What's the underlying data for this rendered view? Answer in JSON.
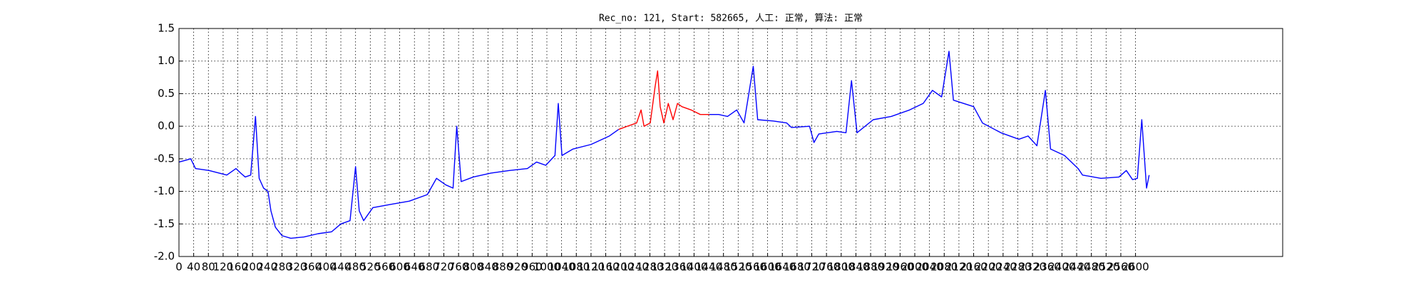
{
  "chart_data": {
    "type": "line",
    "title": "Rec_no: 121, Start: 582665, 人工: 正常, 算法: 正常",
    "xlim": [
      0,
      3000
    ],
    "ylim": [
      -2.0,
      1.5
    ],
    "xticks": [
      0,
      40,
      80,
      120,
      160,
      200,
      240,
      280,
      320,
      360,
      400,
      440,
      480,
      520,
      560,
      600,
      640,
      680,
      720,
      760,
      800,
      840,
      880,
      920,
      960,
      1000,
      1040,
      1080,
      1120,
      1160,
      1200,
      1240,
      1280,
      1320,
      1360,
      1400,
      1440,
      1480,
      1520,
      1560,
      1600,
      1640,
      1680,
      1720,
      1760,
      1800,
      1840,
      1880,
      1920,
      1960,
      2000,
      2040,
      2080,
      2120,
      2160,
      2200,
      2240,
      2280,
      2320,
      2360,
      2400,
      2440,
      2480,
      2520,
      2560,
      2600
    ],
    "yticks": [
      {
        "value": -2.0,
        "label": "-2.0"
      },
      -1.5,
      {
        "value": -1.0,
        "label": "-1.0"
      },
      -0.5,
      {
        "value": 0.0,
        "label": "0.0"
      },
      0.5,
      {
        "value": 1.0,
        "label": "1.0"
      },
      1.5
    ],
    "grid": true,
    "series": [
      {
        "color": "#0000ff",
        "x": [
          0,
          20,
          32,
          45,
          82,
          130,
          155,
          168,
          180,
          195,
          208,
          218,
          230,
          242,
          250,
          262,
          280,
          304,
          340,
          378,
          415,
          440,
          465,
          480,
          490,
          502,
          527,
          576,
          626,
          675,
          700,
          725,
          745,
          755,
          767,
          800,
          848,
          898,
          947,
          972,
          997,
          1022,
          1031,
          1041,
          1071,
          1120,
          1170,
          1195
        ],
        "values": [
          -0.55,
          -0.52,
          -0.5,
          -0.65,
          -0.68,
          -0.75,
          -0.65,
          -0.72,
          -0.78,
          -0.75,
          0.15,
          -0.8,
          -0.95,
          -1.0,
          -1.3,
          -1.55,
          -1.68,
          -1.72,
          -1.7,
          -1.65,
          -1.62,
          -1.5,
          -1.45,
          -0.62,
          -1.3,
          -1.45,
          -1.25,
          -1.2,
          -1.15,
          -1.05,
          -0.8,
          -0.9,
          -0.95,
          0.0,
          -0.85,
          -0.78,
          -0.72,
          -0.68,
          -0.65,
          -0.55,
          -0.6,
          -0.45,
          0.35,
          -0.45,
          -0.35,
          -0.28,
          -0.15,
          -0.05
        ]
      },
      {
        "color": "#ff0000",
        "x": [
          1195,
          1219,
          1244,
          1256,
          1264,
          1281,
          1294,
          1301,
          1308,
          1318,
          1330,
          1343,
          1355,
          1367,
          1392,
          1417,
          1442
        ],
        "values": [
          -0.05,
          0.0,
          0.05,
          0.25,
          0.0,
          0.05,
          0.6,
          0.85,
          0.3,
          0.05,
          0.35,
          0.1,
          0.35,
          0.3,
          0.25,
          0.18,
          0.18
        ]
      },
      {
        "color": "#0000ff",
        "x": [
          1442,
          1467,
          1491,
          1516,
          1536,
          1561,
          1573,
          1615,
          1652,
          1665,
          1714,
          1726,
          1739,
          1788,
          1813,
          1828,
          1843,
          1887,
          1936,
          1986,
          2023,
          2048,
          2073,
          2093,
          2105,
          2160,
          2184,
          2234,
          2283,
          2308,
          2332,
          2355,
          2369,
          2407,
          2444,
          2456,
          2506,
          2555,
          2575,
          2592,
          2605,
          2617,
          2630,
          2637
        ],
        "values": [
          0.18,
          0.18,
          0.15,
          0.25,
          0.05,
          0.92,
          0.1,
          0.08,
          0.05,
          -0.02,
          0.0,
          -0.25,
          -0.12,
          -0.08,
          -0.1,
          0.7,
          -0.1,
          0.1,
          0.15,
          0.25,
          0.35,
          0.55,
          0.45,
          1.15,
          0.4,
          0.3,
          0.05,
          -0.1,
          -0.2,
          -0.15,
          -0.3,
          0.55,
          -0.35,
          -0.45,
          -0.65,
          -0.75,
          -0.8,
          -0.78,
          -0.68,
          -0.82,
          -0.8,
          0.1,
          -0.95,
          -0.75
        ]
      }
    ]
  }
}
